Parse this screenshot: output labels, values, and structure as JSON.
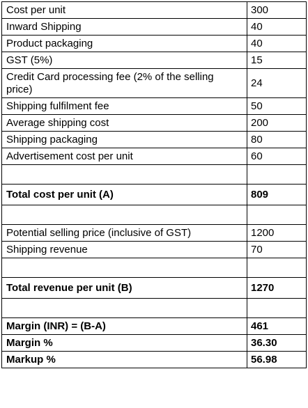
{
  "rows": [
    {
      "label": "Cost per unit",
      "value": "300",
      "kind": "normal"
    },
    {
      "label": "Inward Shipping",
      "value": "40",
      "kind": "normal"
    },
    {
      "label": "Product packaging",
      "value": "40",
      "kind": "normal"
    },
    {
      "label": "GST (5%)",
      "value": "15",
      "kind": "normal"
    },
    {
      "label": "Credit Card processing fee (2% of the selling price)",
      "value": "24",
      "kind": "tall"
    },
    {
      "label": "Shipping fulfilment fee",
      "value": "50",
      "kind": "normal"
    },
    {
      "label": "Average shipping cost",
      "value": "200",
      "kind": "normal"
    },
    {
      "label": "Shipping packaging",
      "value": "80",
      "kind": "normal"
    },
    {
      "label": "Advertisement cost per unit",
      "value": "60",
      "kind": "normal"
    },
    {
      "label": "",
      "value": "",
      "kind": "blank"
    },
    {
      "label": "Total cost per unit (A)",
      "value": "809",
      "kind": "total"
    },
    {
      "label": "",
      "value": "",
      "kind": "blank"
    },
    {
      "label": "Potential selling price (inclusive of GST)",
      "value": "1200",
      "kind": "normal"
    },
    {
      "label": "Shipping revenue",
      "value": "70",
      "kind": "normal"
    },
    {
      "label": "",
      "value": "",
      "kind": "blank"
    },
    {
      "label": "Total revenue per unit (B)",
      "value": "1270",
      "kind": "total"
    },
    {
      "label": "",
      "value": "",
      "kind": "blank"
    },
    {
      "label": "Margin (INR) = (B-A)",
      "value": "461",
      "kind": "bold"
    },
    {
      "label": "Margin %",
      "value": "36.30",
      "kind": "bold"
    },
    {
      "label": "Markup %",
      "value": "56.98",
      "kind": "bold"
    }
  ]
}
